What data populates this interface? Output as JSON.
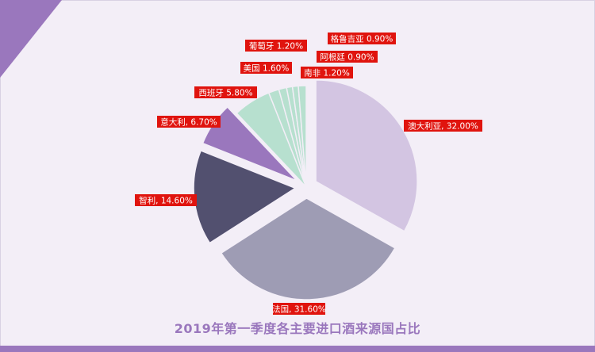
{
  "chart_data": {
    "type": "pie",
    "title": "2019年第一季度各主要进口酒来源国占比",
    "slices": [
      {
        "label": "澳大利亚",
        "value": 32.0,
        "display": "澳大利亚, 32.00%",
        "color": "#d3c5e2"
      },
      {
        "label": "法国",
        "value": 31.6,
        "display": "法国, 31.60%",
        "color": "#9e9cb4"
      },
      {
        "label": "智利",
        "value": 14.6,
        "display": "智利, 14.60%",
        "color": "#52506f"
      },
      {
        "label": "意大利",
        "value": 6.7,
        "display": "意大利, 6.70%",
        "color": "#9a77bd"
      },
      {
        "label": "西班牙",
        "value": 5.8,
        "display": "西班牙 5.80%",
        "color": "#b7e0cf"
      },
      {
        "label": "美国",
        "value": 1.6,
        "display": "美国 1.60%",
        "color": "#b7e0cf"
      },
      {
        "label": "葡萄牙",
        "value": 1.2,
        "display": "葡萄牙 1.20%",
        "color": "#b7e0cf"
      },
      {
        "label": "格鲁吉亚",
        "value": 0.9,
        "display": "格鲁吉亚 0.90%",
        "color": "#b7e0cf"
      },
      {
        "label": "阿根廷",
        "value": 0.9,
        "display": "阿根廷 0.90%",
        "color": "#b7e0cf"
      },
      {
        "label": "南非",
        "value": 1.2,
        "display": "南非 1.20%",
        "color": "#b7e0cf"
      }
    ],
    "label_color": "#e0140e",
    "accent_color": "#9a77bd"
  }
}
